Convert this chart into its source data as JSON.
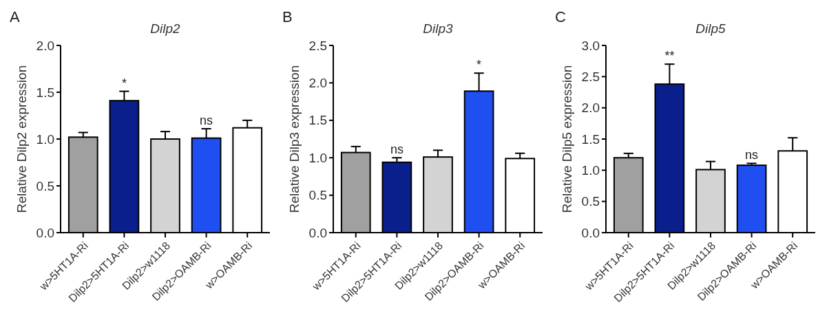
{
  "chart_data": [
    {
      "type": "bar",
      "title": "Dilp2",
      "ylabel": "Relative Dilp2 expression",
      "categories": [
        "w>5HT1A-Ri",
        "Dilp2>5HT1A-Ri",
        "Dilp2>w1118",
        "Dilp2>OAMB-Ri",
        "w>OAMB-Ri"
      ],
      "values": [
        1.02,
        1.41,
        1.0,
        1.01,
        1.12
      ],
      "errors": [
        [
          1.02,
          1.07
        ],
        [
          1.41,
          1.51
        ],
        [
          1.0,
          1.08
        ],
        [
          1.01,
          1.11
        ],
        [
          1.12,
          1.2
        ]
      ],
      "colors": [
        "#a0a0a0",
        "#0a1e8c",
        "#d3d3d3",
        "#1f4ff0",
        "#ffffff"
      ],
      "ylim": [
        0,
        2
      ],
      "yticks": [
        {
          "value": 0,
          "label": "0.0"
        },
        {
          "value": 0.5,
          "label": "0.5"
        },
        {
          "value": 1,
          "label": "1.0"
        },
        {
          "value": 1.5,
          "label": "1.5"
        },
        {
          "value": 2,
          "label": "2.0"
        }
      ],
      "grid": false,
      "annotations": [
        "A",
        {
          "text": "*",
          "x": "Dilp2>5HT1A-Ri",
          "y": 1.51
        },
        {
          "text": "ns",
          "x": "Dilp2>OAMB-Ri",
          "y": 1.11
        }
      ]
    },
    {
      "type": "bar",
      "title": "Dilp3",
      "ylabel": "Relative Dilp3 expression",
      "categories": [
        "w>5HT1A-Ri",
        "Dilp2>5HT1A-Ri",
        "Dilp2>w1118",
        "Dilp2>OAMB-Ri",
        "w>OAMB-Ri"
      ],
      "values": [
        1.07,
        0.94,
        1.01,
        1.89,
        0.99
      ],
      "errors": [
        [
          1.07,
          1.15
        ],
        [
          0.94,
          1.0
        ],
        [
          1.01,
          1.1
        ],
        [
          1.89,
          2.13
        ],
        [
          0.99,
          1.06
        ]
      ],
      "colors": [
        "#a0a0a0",
        "#0a1e8c",
        "#d3d3d3",
        "#1f4ff0",
        "#ffffff"
      ],
      "ylim": [
        0,
        2.5
      ],
      "yticks": [
        {
          "value": 0,
          "label": "0.0"
        },
        {
          "value": 0.5,
          "label": "0.5"
        },
        {
          "value": 1,
          "label": "1.0"
        },
        {
          "value": 1.5,
          "label": "1.5"
        },
        {
          "value": 2,
          "label": "2.0"
        },
        {
          "value": 2.5,
          "label": "2.5"
        }
      ],
      "grid": false,
      "annotations": [
        "B",
        {
          "text": "ns",
          "x": "Dilp2>5HT1A-Ri",
          "y": 1.0
        },
        {
          "text": "*",
          "x": "Dilp2>OAMB-Ri",
          "y": 2.13
        }
      ]
    },
    {
      "type": "bar",
      "title": "Dilp5",
      "ylabel": "Relative Dilp5 expression",
      "categories": [
        "w>5HT1A-Ri",
        "Dilp2>5HT1A-Ri",
        "Dilp2>w1118",
        "Dilp2>OAMB-Ri",
        "w>OAMB-Ri"
      ],
      "values": [
        1.2,
        2.38,
        1.01,
        1.08,
        1.31
      ],
      "errors": [
        [
          1.2,
          1.27
        ],
        [
          2.38,
          2.7
        ],
        [
          1.01,
          1.14
        ],
        [
          1.08,
          1.11
        ],
        [
          1.31,
          1.52
        ]
      ],
      "colors": [
        "#a0a0a0",
        "#0a1e8c",
        "#d3d3d3",
        "#1f4ff0",
        "#ffffff"
      ],
      "ylim": [
        0,
        3
      ],
      "yticks": [
        {
          "value": 0,
          "label": "0.0"
        },
        {
          "value": 0.5,
          "label": "0.5"
        },
        {
          "value": 1,
          "label": "1.0"
        },
        {
          "value": 1.5,
          "label": "1.5"
        },
        {
          "value": 2,
          "label": "2.0"
        },
        {
          "value": 2.5,
          "label": "2.5"
        },
        {
          "value": 3,
          "label": "3.0"
        }
      ],
      "grid": false,
      "annotations": [
        "C",
        {
          "text": "**",
          "x": "Dilp2>5HT1A-Ri",
          "y": 2.7
        },
        {
          "text": "ns",
          "x": "Dilp2>OAMB-Ri",
          "y": 1.11
        }
      ]
    }
  ]
}
